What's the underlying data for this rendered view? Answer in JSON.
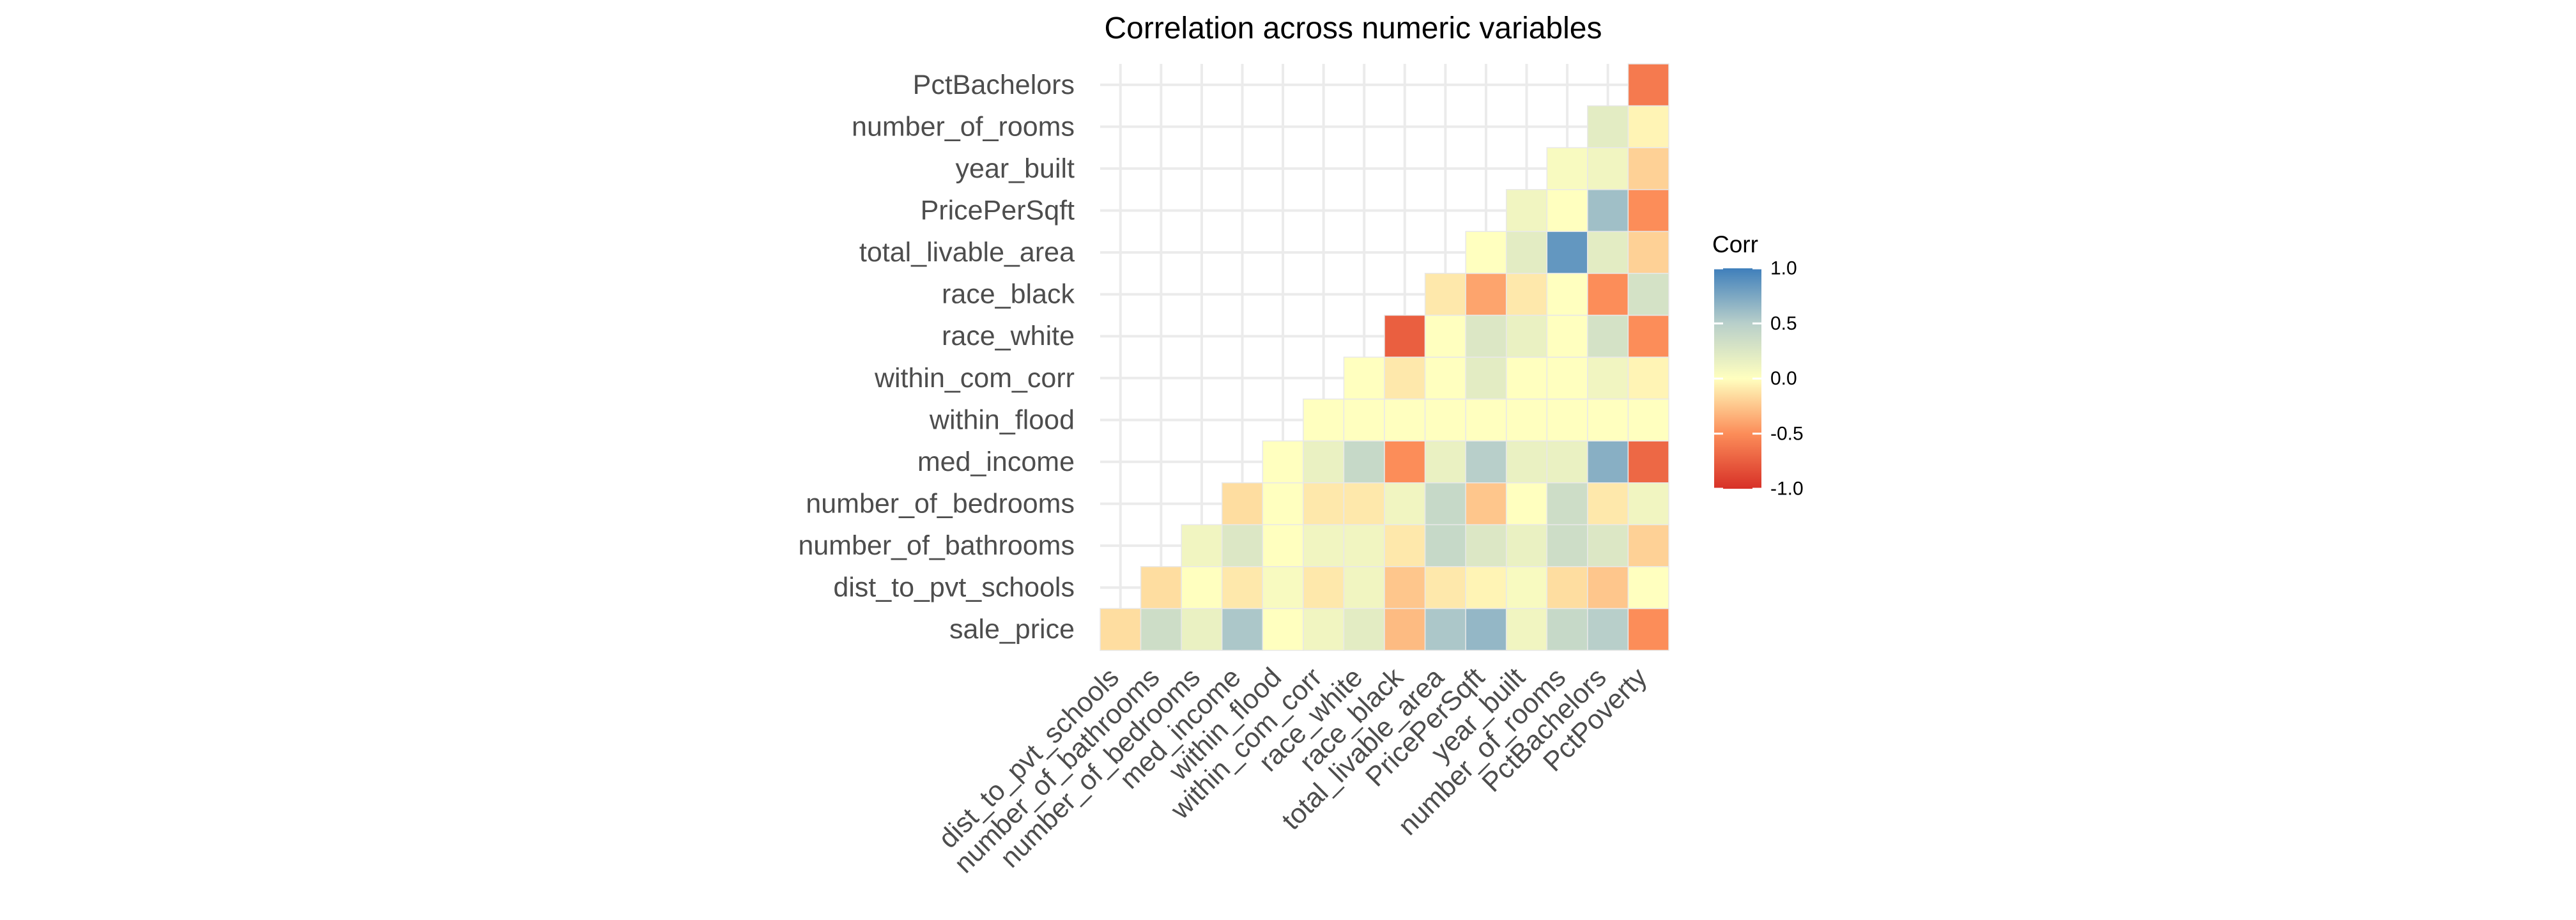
{
  "chart_data": {
    "type": "heatmap",
    "title": "Correlation across numeric variables",
    "xlabel": "",
    "ylabel": "",
    "x_categories": [
      "dist_to_pvt_schools",
      "number_of_bathrooms",
      "number_of_bedrooms",
      "med_income",
      "within_flood",
      "within_com_corr",
      "race_white",
      "race_black",
      "total_livable_area",
      "PricePerSqft",
      "year_built",
      "number_of_rooms",
      "PctBachelors",
      "PctPoverty"
    ],
    "y_categories": [
      "sale_price",
      "dist_to_pvt_schools",
      "number_of_bathrooms",
      "number_of_bedrooms",
      "med_income",
      "within_flood",
      "within_com_corr",
      "race_white",
      "race_black",
      "total_livable_area",
      "PricePerSqft",
      "year_built",
      "number_of_rooms",
      "PctBachelors"
    ],
    "values": [
      [
        -0.15,
        0.35,
        0.15,
        0.55,
        0.0,
        0.1,
        0.2,
        -0.3,
        0.55,
        0.65,
        0.1,
        0.4,
        0.5,
        -0.5
      ],
      [
        null,
        -0.15,
        0.0,
        -0.1,
        0.05,
        -0.1,
        0.1,
        -0.25,
        -0.1,
        -0.05,
        0.05,
        -0.15,
        -0.25,
        0.0
      ],
      [
        null,
        null,
        0.1,
        0.25,
        0.0,
        0.1,
        0.1,
        -0.1,
        0.4,
        0.25,
        0.15,
        0.35,
        0.25,
        -0.2
      ],
      [
        null,
        null,
        null,
        -0.15,
        0.0,
        -0.1,
        -0.1,
        0.1,
        0.4,
        -0.25,
        0.0,
        0.35,
        -0.1,
        0.1
      ],
      [
        null,
        null,
        null,
        null,
        0.0,
        0.15,
        0.4,
        -0.5,
        0.15,
        0.5,
        0.15,
        0.15,
        0.7,
        -0.7
      ],
      [
        null,
        null,
        null,
        null,
        null,
        0.0,
        0.0,
        0.0,
        0.0,
        0.0,
        0.0,
        0.0,
        0.0,
        0.0
      ],
      [
        null,
        null,
        null,
        null,
        null,
        null,
        0.0,
        -0.1,
        0.0,
        0.2,
        0.0,
        0.0,
        0.1,
        -0.05
      ],
      [
        null,
        null,
        null,
        null,
        null,
        null,
        null,
        -0.75,
        0.0,
        0.25,
        0.15,
        0.0,
        0.3,
        -0.5
      ],
      [
        null,
        null,
        null,
        null,
        null,
        null,
        null,
        null,
        -0.1,
        -0.4,
        -0.1,
        0.0,
        -0.5,
        0.3
      ],
      [
        null,
        null,
        null,
        null,
        null,
        null,
        null,
        null,
        null,
        0.0,
        0.2,
        0.85,
        0.2,
        -0.2
      ],
      [
        null,
        null,
        null,
        null,
        null,
        null,
        null,
        null,
        null,
        null,
        0.1,
        0.0,
        0.6,
        -0.5
      ],
      [
        null,
        null,
        null,
        null,
        null,
        null,
        null,
        null,
        null,
        null,
        null,
        0.05,
        0.1,
        -0.2
      ],
      [
        null,
        null,
        null,
        null,
        null,
        null,
        null,
        null,
        null,
        null,
        null,
        null,
        0.2,
        -0.05
      ],
      [
        null,
        null,
        null,
        null,
        null,
        null,
        null,
        null,
        null,
        null,
        null,
        null,
        null,
        -0.6
      ]
    ],
    "legend": {
      "title": "Corr",
      "ticks": [
        1.0,
        0.5,
        0.0,
        -0.5,
        -1.0
      ],
      "tick_labels": [
        "1.0",
        "0.5",
        "0.0",
        "-0.5",
        "-1.0"
      ],
      "range": [
        -1.0,
        1.0
      ],
      "position": "right"
    },
    "colors": {
      "neg": "#d73027",
      "neg_mid": "#fc8d59",
      "zero": "#ffffbf",
      "pos_mid": "#b8cfca",
      "pos": "#3f7fbb"
    },
    "grid": true
  }
}
